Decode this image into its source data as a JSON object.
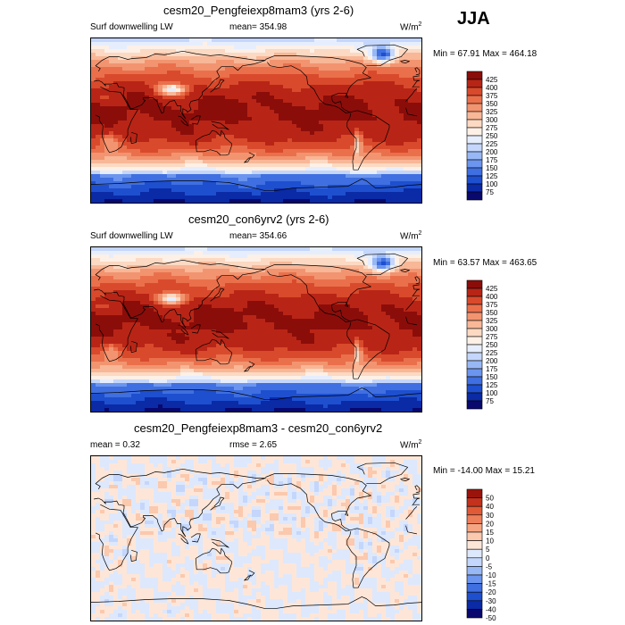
{
  "season": "JJA",
  "colors": {
    "abs_scale": [
      "#08086e",
      "#0a2aa6",
      "#1e4fcf",
      "#3f6fe0",
      "#6b95ee",
      "#98b8f5",
      "#c4d6fb",
      "#e6eefd",
      "#fdf0e6",
      "#fcd9c2",
      "#f8b797",
      "#f29470",
      "#ea704c",
      "#d94a2c",
      "#b82516",
      "#8b0d0a"
    ],
    "diff_scale": [
      "#08086e",
      "#0a2aa6",
      "#1e4fcf",
      "#3f6fe0",
      "#6b95ee",
      "#98b8f5",
      "#c4d6fb",
      "#dde8fc",
      "#fde6d8",
      "#fbc9ae",
      "#f6a582",
      "#ee7f5b",
      "#e05a37",
      "#c4311c",
      "#9a140c"
    ],
    "map_edge": "#000000"
  },
  "chart_data": [
    {
      "type": "heatmap",
      "title": "cesm20_Pengfeiexp8mam3 (yrs 2-6)",
      "variable": "Surf downwelling LW",
      "mean_label": "mean= 354.98",
      "units": "W/m",
      "units_sup": "2",
      "min_value": 67.91,
      "max_value": 464.18,
      "min_max_label": "Min =  67.91 Max = 464.18",
      "colorbar_levels": [
        425,
        400,
        375,
        350,
        325,
        300,
        275,
        250,
        225,
        200,
        175,
        150,
        125,
        100,
        75
      ],
      "colorbar_labels": [
        "425",
        "400",
        "375",
        "350",
        "325",
        "300",
        "275",
        "250",
        "225",
        "200",
        "175",
        "150",
        "125",
        "100",
        "75"
      ]
    },
    {
      "type": "heatmap",
      "title": "cesm20_con6yrv2 (yrs 2-6)",
      "variable": "Surf downwelling LW",
      "mean_label": "mean= 354.66",
      "units": "W/m",
      "units_sup": "2",
      "min_value": 63.57,
      "max_value": 463.65,
      "min_max_label": "Min =  63.57 Max = 463.65",
      "colorbar_levels": [
        425,
        400,
        375,
        350,
        325,
        300,
        275,
        250,
        225,
        200,
        175,
        150,
        125,
        100,
        75
      ],
      "colorbar_labels": [
        "425",
        "400",
        "375",
        "350",
        "325",
        "300",
        "275",
        "250",
        "225",
        "200",
        "175",
        "150",
        "125",
        "100",
        "75"
      ]
    },
    {
      "type": "heatmap",
      "title": "cesm20_Pengfeiexp8mam3 - cesm20_con6yrv2",
      "mean_label": "mean =   0.32",
      "rmse_label": "rmse =   2.65",
      "units": "W/m",
      "units_sup": "2",
      "min_value": -14.0,
      "max_value": 15.21,
      "min_max_label": "Min = -14.00 Max =  15.21",
      "colorbar_levels": [
        50,
        40,
        30,
        20,
        15,
        10,
        5,
        0,
        -5,
        -10,
        -15,
        -20,
        -30,
        -40,
        -50
      ],
      "colorbar_labels": [
        "50",
        "40",
        "30",
        "20",
        "15",
        "10",
        "5",
        "0",
        "-5",
        "-10",
        "-15",
        "-20",
        "-30",
        "-40",
        "-50"
      ]
    }
  ]
}
